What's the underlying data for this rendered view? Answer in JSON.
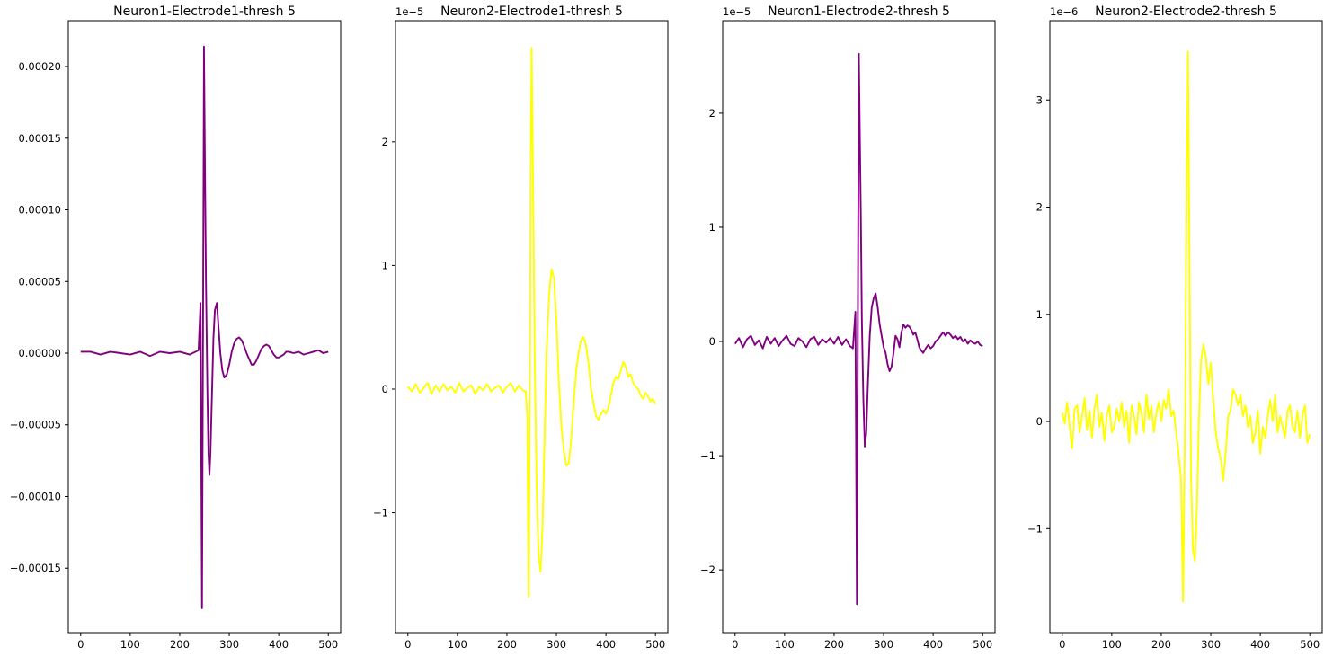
{
  "chart_data": [
    {
      "type": "line",
      "title": "Neuron1-Electrode1-thresh 5",
      "xlabel": "",
      "ylabel": "",
      "offset_text": "",
      "xlim": [
        -25,
        525
      ],
      "ylim": [
        -0.000195,
        0.000232
      ],
      "xticks": [
        {
          "v": 0,
          "label": "0"
        },
        {
          "v": 100,
          "label": "100"
        },
        {
          "v": 200,
          "label": "200"
        },
        {
          "v": 300,
          "label": "300"
        },
        {
          "v": 400,
          "label": "400"
        },
        {
          "v": 500,
          "label": "500"
        }
      ],
      "yticks": [
        {
          "v": -0.00015,
          "label": "−0.00015"
        },
        {
          "v": -0.0001,
          "label": "−0.00010"
        },
        {
          "v": -5e-05,
          "label": "−0.00005"
        },
        {
          "v": 0,
          "label": "0.00000"
        },
        {
          "v": 5e-05,
          "label": "0.00005"
        },
        {
          "v": 0.0001,
          "label": "0.00010"
        },
        {
          "v": 0.00015,
          "label": "0.00015"
        },
        {
          "v": 0.0002,
          "label": "0.00020"
        }
      ],
      "grid": false,
      "color": "#800080",
      "series": [
        {
          "x": [
            0,
            20,
            40,
            60,
            80,
            100,
            120,
            140,
            160,
            180,
            200,
            220,
            238,
            242,
            245,
            247,
            249,
            251,
            253,
            256,
            258,
            260,
            262,
            265,
            268,
            271,
            275,
            278,
            282,
            286,
            290,
            295,
            300,
            305,
            310,
            315,
            320,
            325,
            330,
            335,
            340,
            345,
            350,
            355,
            360,
            365,
            370,
            375,
            380,
            385,
            390,
            395,
            400,
            405,
            410,
            415,
            420,
            430,
            440,
            450,
            460,
            470,
            480,
            490,
            500
          ],
          "y": [
            1e-06,
            1e-06,
            -1e-06,
            1e-06,
            0,
            -1e-06,
            1e-06,
            -2e-06,
            1e-06,
            0,
            1e-06,
            -1e-06,
            2e-06,
            3.5e-05,
            -0.000178,
            1e-05,
            0.000214,
            0.00013,
            5e-05,
            -3e-05,
            -7e-05,
            -8.5e-05,
            -7e-05,
            -3e-05,
            1e-05,
            3e-05,
            3.5e-05,
            2e-05,
            0,
            -1.2e-05,
            -1.7e-05,
            -1.5e-05,
            -8e-06,
            1e-06,
            7e-06,
            1e-05,
            1.1e-05,
            9e-06,
            5e-06,
            0,
            -4e-06,
            -8e-06,
            -8e-06,
            -5e-06,
            -1e-06,
            3e-06,
            5e-06,
            6e-06,
            5e-06,
            2e-06,
            -1e-06,
            -3e-06,
            -3e-06,
            -2e-06,
            -1e-06,
            1e-06,
            1e-06,
            0,
            1e-06,
            -1e-06,
            0,
            1e-06,
            2e-06,
            0,
            1e-06
          ]
        }
      ]
    },
    {
      "type": "line",
      "title": "Neuron2-Electrode1-thresh 5",
      "xlabel": "",
      "ylabel": "",
      "offset_text": "1e−5",
      "xlim": [
        -25,
        525
      ],
      "ylim": [
        -1.97,
        2.98
      ],
      "xticks": [
        {
          "v": 0,
          "label": "0"
        },
        {
          "v": 100,
          "label": "100"
        },
        {
          "v": 200,
          "label": "200"
        },
        {
          "v": 300,
          "label": "300"
        },
        {
          "v": 400,
          "label": "400"
        },
        {
          "v": 500,
          "label": "500"
        }
      ],
      "yticks": [
        {
          "v": -1,
          "label": "−1"
        },
        {
          "v": 0,
          "label": "0"
        },
        {
          "v": 1,
          "label": "1"
        },
        {
          "v": 2,
          "label": "2"
        }
      ],
      "grid": false,
      "color": "#ffff00",
      "series": [
        {
          "x": [
            0,
            8,
            16,
            24,
            32,
            40,
            48,
            56,
            64,
            72,
            80,
            88,
            96,
            104,
            112,
            120,
            128,
            136,
            144,
            152,
            160,
            168,
            176,
            184,
            192,
            200,
            208,
            216,
            224,
            232,
            238,
            241,
            244,
            246,
            248,
            250,
            253,
            256,
            260,
            264,
            268,
            272,
            276,
            280,
            285,
            290,
            295,
            300,
            305,
            310,
            315,
            320,
            325,
            330,
            335,
            340,
            345,
            350,
            355,
            360,
            365,
            370,
            375,
            380,
            385,
            390,
            395,
            400,
            405,
            410,
            415,
            420,
            425,
            430,
            435,
            440,
            445,
            450,
            455,
            460,
            465,
            470,
            475,
            480,
            485,
            490,
            495,
            500
          ],
          "y": [
            0.02,
            -0.02,
            0.04,
            -0.03,
            0.01,
            0.05,
            -0.04,
            0.03,
            -0.02,
            0.04,
            -0.01,
            0.02,
            -0.03,
            0.05,
            -0.02,
            0.01,
            0.03,
            -0.04,
            0.02,
            -0.01,
            0.04,
            -0.02,
            0.01,
            0.03,
            -0.03,
            0.02,
            0.05,
            -0.02,
            0.03,
            -0.01,
            -0.02,
            -0.2,
            -1.68,
            -0.4,
            1.8,
            2.76,
            1.6,
            0.3,
            -0.8,
            -1.35,
            -1.48,
            -1.1,
            -0.4,
            0.3,
            0.75,
            0.97,
            0.9,
            0.55,
            0.05,
            -0.3,
            -0.5,
            -0.62,
            -0.6,
            -0.4,
            -0.1,
            0.15,
            0.3,
            0.4,
            0.42,
            0.35,
            0.2,
            0.0,
            -0.12,
            -0.22,
            -0.25,
            -0.2,
            -0.17,
            -0.2,
            -0.15,
            -0.05,
            0.05,
            0.1,
            0.08,
            0.15,
            0.22,
            0.18,
            0.1,
            0.12,
            0.05,
            0.02,
            0.0,
            -0.05,
            -0.08,
            -0.03,
            -0.06,
            -0.1,
            -0.08,
            -0.12
          ]
        }
      ]
    },
    {
      "type": "line",
      "title": "Neuron1-Electrode2-thresh 5",
      "xlabel": "",
      "ylabel": "",
      "offset_text": "1e−5",
      "xlim": [
        -25,
        525
      ],
      "ylim": [
        -2.55,
        2.81
      ],
      "xticks": [
        {
          "v": 0,
          "label": "0"
        },
        {
          "v": 100,
          "label": "100"
        },
        {
          "v": 200,
          "label": "200"
        },
        {
          "v": 300,
          "label": "300"
        },
        {
          "v": 400,
          "label": "400"
        },
        {
          "v": 500,
          "label": "500"
        }
      ],
      "yticks": [
        {
          "v": -2,
          "label": "−2"
        },
        {
          "v": -1,
          "label": "−1"
        },
        {
          "v": 0,
          "label": "0"
        },
        {
          "v": 1,
          "label": "1"
        },
        {
          "v": 2,
          "label": "2"
        }
      ],
      "grid": false,
      "color": "#800080",
      "series": [
        {
          "x": [
            0,
            8,
            16,
            24,
            32,
            40,
            48,
            56,
            64,
            72,
            80,
            88,
            96,
            104,
            112,
            120,
            128,
            136,
            144,
            152,
            160,
            168,
            176,
            184,
            192,
            200,
            208,
            216,
            224,
            232,
            238,
            243,
            246,
            248,
            250,
            252,
            254,
            256,
            259,
            262,
            265,
            268,
            272,
            276,
            280,
            284,
            288,
            292,
            296,
            300,
            304,
            308,
            312,
            316,
            320,
            324,
            328,
            332,
            336,
            340,
            344,
            348,
            352,
            356,
            360,
            364,
            368,
            372,
            376,
            380,
            385,
            390,
            395,
            400,
            405,
            410,
            415,
            420,
            425,
            430,
            435,
            440,
            445,
            450,
            455,
            460,
            465,
            470,
            475,
            480,
            485,
            490,
            495,
            500
          ],
          "y": [
            -0.02,
            0.03,
            -0.05,
            0.02,
            0.05,
            -0.03,
            0.01,
            -0.06,
            0.04,
            -0.02,
            0.03,
            -0.04,
            0.01,
            0.05,
            -0.02,
            -0.04,
            0.03,
            0.0,
            -0.05,
            0.02,
            0.04,
            -0.03,
            0.02,
            -0.01,
            0.03,
            -0.02,
            0.04,
            -0.03,
            0.02,
            -0.04,
            -0.06,
            0.26,
            -2.3,
            0.2,
            2.52,
            1.8,
            1.1,
            0.2,
            -0.5,
            -0.92,
            -0.8,
            -0.4,
            0.05,
            0.3,
            0.38,
            0.42,
            0.3,
            0.15,
            0.05,
            -0.05,
            -0.1,
            -0.2,
            -0.26,
            -0.22,
            -0.1,
            0.05,
            0.02,
            -0.05,
            0.08,
            0.15,
            0.12,
            0.14,
            0.13,
            0.1,
            0.06,
            0.08,
            0.02,
            -0.05,
            -0.08,
            -0.1,
            -0.06,
            -0.03,
            -0.06,
            -0.04,
            0.0,
            0.02,
            0.05,
            0.08,
            0.05,
            0.08,
            0.06,
            0.03,
            0.05,
            0.02,
            0.04,
            0.0,
            0.02,
            -0.02,
            0.01,
            -0.01,
            -0.02,
            0.0,
            -0.03,
            -0.04
          ]
        }
      ]
    },
    {
      "type": "line",
      "title": "Neuron2-Electrode2-thresh 5",
      "xlabel": "",
      "ylabel": "",
      "offset_text": "1e−6",
      "xlim": [
        -25,
        525
      ],
      "ylim": [
        -1.97,
        3.74
      ],
      "xticks": [
        {
          "v": 0,
          "label": "0"
        },
        {
          "v": 100,
          "label": "100"
        },
        {
          "v": 200,
          "label": "200"
        },
        {
          "v": 300,
          "label": "300"
        },
        {
          "v": 400,
          "label": "400"
        },
        {
          "v": 500,
          "label": "500"
        }
      ],
      "yticks": [
        {
          "v": -1,
          "label": "−1"
        },
        {
          "v": 0,
          "label": "0"
        },
        {
          "v": 1,
          "label": "1"
        },
        {
          "v": 2,
          "label": "2"
        },
        {
          "v": 3,
          "label": "3"
        }
      ],
      "grid": false,
      "color": "#ffff00",
      "series": [
        {
          "x": [
            0,
            5,
            10,
            15,
            20,
            25,
            30,
            35,
            40,
            45,
            50,
            55,
            60,
            65,
            70,
            75,
            80,
            85,
            90,
            95,
            100,
            105,
            110,
            115,
            120,
            125,
            130,
            135,
            140,
            145,
            150,
            155,
            160,
            165,
            170,
            175,
            180,
            185,
            190,
            195,
            200,
            205,
            210,
            215,
            220,
            225,
            230,
            235,
            240,
            244,
            248,
            251,
            254,
            257,
            260,
            264,
            268,
            272,
            276,
            280,
            285,
            290,
            295,
            300,
            305,
            310,
            315,
            320,
            325,
            330,
            335,
            340,
            345,
            350,
            355,
            360,
            365,
            370,
            375,
            380,
            385,
            390,
            395,
            400,
            405,
            410,
            415,
            420,
            425,
            430,
            435,
            440,
            445,
            450,
            455,
            460,
            465,
            470,
            475,
            480,
            485,
            490,
            495,
            500
          ],
          "y": [
            0.08,
            -0.02,
            0.18,
            -0.05,
            -0.25,
            0.12,
            0.15,
            -0.1,
            0.05,
            0.22,
            -0.08,
            0.1,
            -0.15,
            0.12,
            0.25,
            -0.05,
            0.08,
            -0.18,
            0.05,
            0.15,
            -0.1,
            -0.05,
            0.12,
            0.0,
            0.18,
            -0.05,
            0.1,
            -0.2,
            0.15,
            0.05,
            -0.12,
            0.18,
            0.08,
            -0.1,
            0.25,
            0.02,
            0.15,
            -0.1,
            0.08,
            0.18,
            0.0,
            0.2,
            0.12,
            0.3,
            0.05,
            0.1,
            -0.1,
            -0.3,
            -0.55,
            -1.68,
            0.0,
            2.0,
            3.45,
            1.5,
            -0.5,
            -1.2,
            -1.3,
            -0.8,
            0.0,
            0.55,
            0.72,
            0.6,
            0.35,
            0.55,
            0.2,
            -0.1,
            -0.25,
            -0.35,
            -0.55,
            -0.3,
            0.05,
            0.1,
            0.3,
            0.25,
            0.15,
            0.25,
            0.05,
            0.15,
            -0.05,
            0.05,
            -0.2,
            -0.1,
            0.1,
            -0.3,
            -0.05,
            -0.15,
            0.05,
            0.2,
            0.0,
            0.25,
            -0.1,
            0.05,
            -0.05,
            -0.15,
            0.1,
            0.15,
            -0.05,
            -0.1,
            0.1,
            -0.15,
            0.05,
            0.15,
            -0.2,
            -0.12
          ]
        }
      ]
    }
  ]
}
